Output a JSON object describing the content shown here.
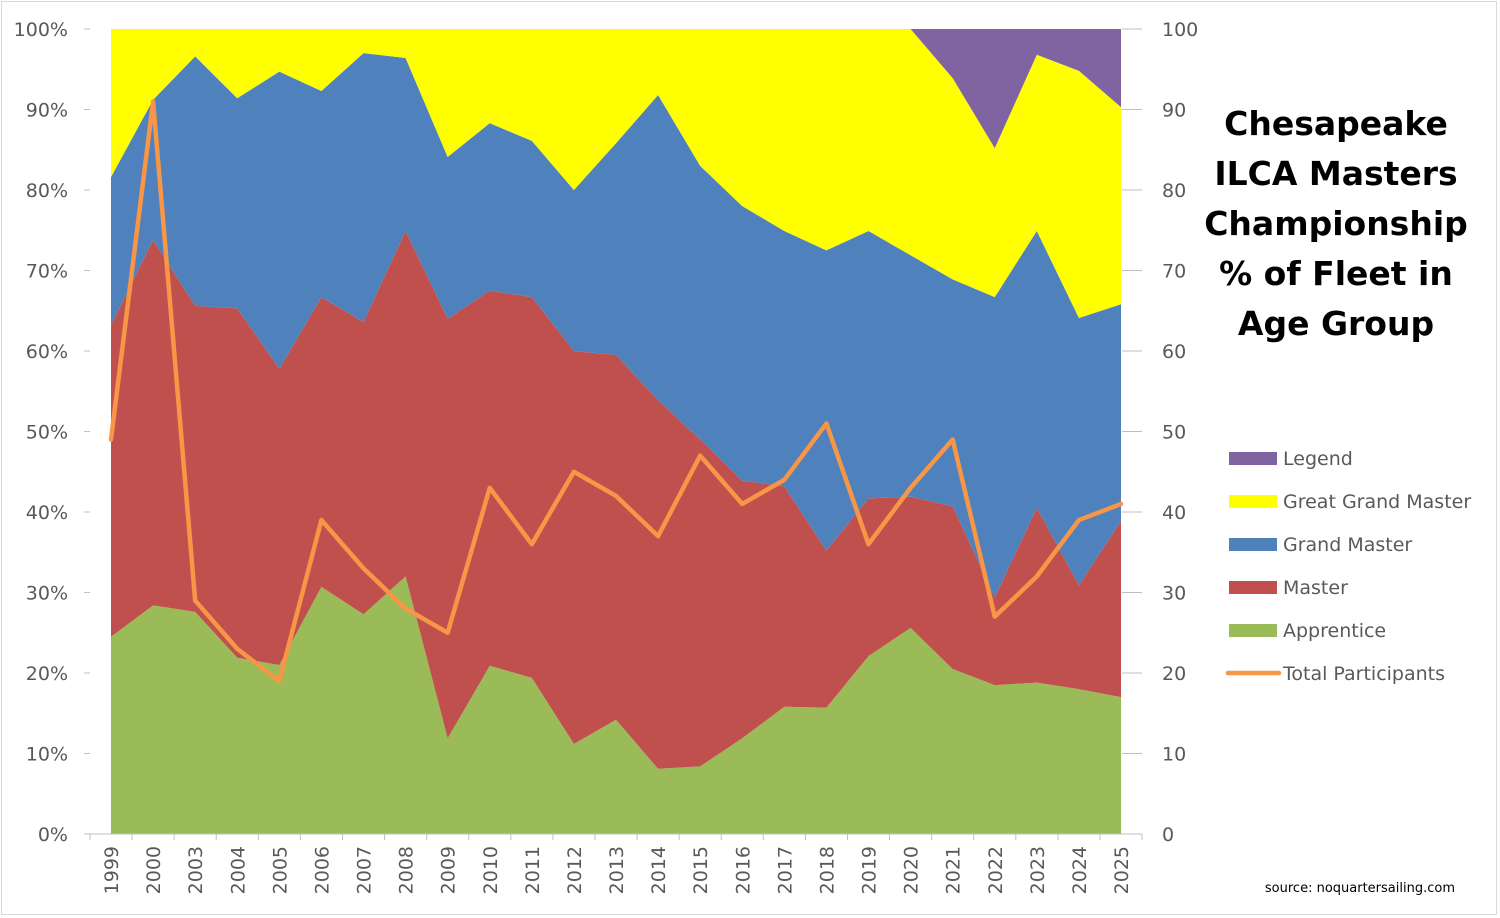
{
  "chart_data": {
    "type": "area",
    "title_lines": [
      "Chesapeake",
      "ILCA Masters",
      "Championship",
      "% of Fleet in",
      "Age Group"
    ],
    "source": "source: noquartersailing.com",
    "categories": [
      "1999",
      "2000",
      "2003",
      "2004",
      "2005",
      "2006",
      "2007",
      "2008",
      "2009",
      "2010",
      "2011",
      "2012",
      "2013",
      "2014",
      "2015",
      "2016",
      "2017",
      "2018",
      "2019",
      "2020",
      "2021",
      "2022",
      "2023",
      "2024",
      "2025"
    ],
    "y_left": {
      "ticks": [
        "0%",
        "10%",
        "20%",
        "30%",
        "40%",
        "50%",
        "60%",
        "70%",
        "80%",
        "90%",
        "100%"
      ],
      "range": [
        0,
        100
      ],
      "unit": "percent"
    },
    "y_right": {
      "ticks": [
        "0",
        "10",
        "20",
        "30",
        "40",
        "50",
        "60",
        "70",
        "80",
        "90",
        "100"
      ],
      "range": [
        0,
        100
      ]
    },
    "grid": false,
    "legend_position": "right",
    "stacked_series": [
      {
        "name": "Apprentice",
        "color": "#9bbb59",
        "values": [
          24.5,
          28.4,
          27.6,
          21.9,
          21.0,
          30.7,
          27.3,
          32.0,
          11.9,
          20.9,
          19.4,
          11.2,
          14.2,
          8.1,
          8.4,
          11.9,
          15.8,
          15.7,
          22.1,
          25.6,
          20.5,
          18.5,
          18.8,
          18.0,
          17.0
        ]
      },
      {
        "name": "Master",
        "color": "#c0504d",
        "values": [
          38.7,
          45.4,
          38.0,
          43.4,
          36.8,
          36.0,
          36.3,
          42.9,
          52.1,
          46.6,
          47.3,
          48.8,
          45.3,
          45.8,
          40.6,
          32.0,
          27.4,
          19.5,
          19.6,
          16.3,
          20.2,
          10.9,
          21.7,
          12.9,
          21.9
        ]
      },
      {
        "name": "Grand Master",
        "color": "#4f81bd",
        "values": [
          18.4,
          17.4,
          31.0,
          26.1,
          36.9,
          25.6,
          33.4,
          21.5,
          20.1,
          20.8,
          19.4,
          20.0,
          26.3,
          37.9,
          34.0,
          34.1,
          31.7,
          37.3,
          33.2,
          30.0,
          28.2,
          37.3,
          34.4,
          33.2,
          26.9
        ]
      },
      {
        "name": "Great Grand Master",
        "color": "#ffff00",
        "values": [
          18.4,
          8.8,
          3.4,
          8.6,
          5.3,
          7.7,
          3.0,
          3.6,
          15.9,
          11.7,
          13.9,
          20.0,
          14.2,
          8.2,
          17.0,
          22.0,
          25.1,
          27.5,
          25.1,
          28.1,
          25.0,
          18.5,
          21.9,
          30.7,
          24.5
        ]
      },
      {
        "name": "Legend",
        "color": "#8064a2",
        "values": [
          0,
          0,
          0,
          0,
          0,
          0,
          0,
          0,
          0,
          0,
          0,
          0,
          0,
          0,
          0,
          0,
          0,
          0,
          0,
          0,
          6.1,
          14.8,
          3.2,
          5.2,
          9.7
        ]
      }
    ],
    "line_series": {
      "name": "Total Participants",
      "axis": "right",
      "color": "#f79646",
      "values": [
        49,
        91,
        29,
        23,
        19,
        39,
        33,
        28,
        25,
        43,
        36,
        45,
        42,
        37,
        47,
        41,
        44,
        51,
        36,
        43,
        49,
        27,
        32,
        39,
        41
      ]
    },
    "legend_order": [
      "Legend",
      "Great Grand Master",
      "Grand Master",
      "Master",
      "Apprentice",
      "Total Participants"
    ]
  }
}
